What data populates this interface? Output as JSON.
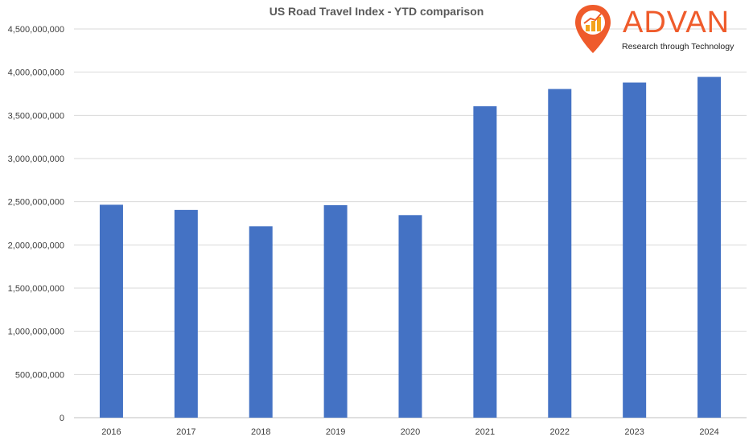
{
  "chart_data": {
    "type": "bar",
    "title": "US Road Travel Index  - YTD comparison",
    "categories": [
      "2016",
      "2017",
      "2018",
      "2019",
      "2020",
      "2021",
      "2022",
      "2023",
      "2024"
    ],
    "series": [
      {
        "values": [
          2465000000,
          2405000000,
          2215000000,
          2460000000,
          2345000000,
          3605000000,
          3805000000,
          3880000000,
          3945000000
        ]
      }
    ],
    "ylim": [
      0,
      4500000000
    ],
    "yticks": [
      "0",
      "500,000,000",
      "1,000,000,000",
      "1,500,000,000",
      "2,000,000,000",
      "2,500,000,000",
      "3,000,000,000",
      "3,500,000,000",
      "4,000,000,000",
      "4,500,000,000"
    ],
    "grid": true,
    "bar_color": "#4472c4",
    "grid_color": "#d9d9d9",
    "xlabel": "",
    "ylabel": ""
  },
  "logo": {
    "name": "ADVAN",
    "tagline": "Research through Technology",
    "color": "#ef5b2b",
    "icon": "map-pin-chart-icon"
  }
}
